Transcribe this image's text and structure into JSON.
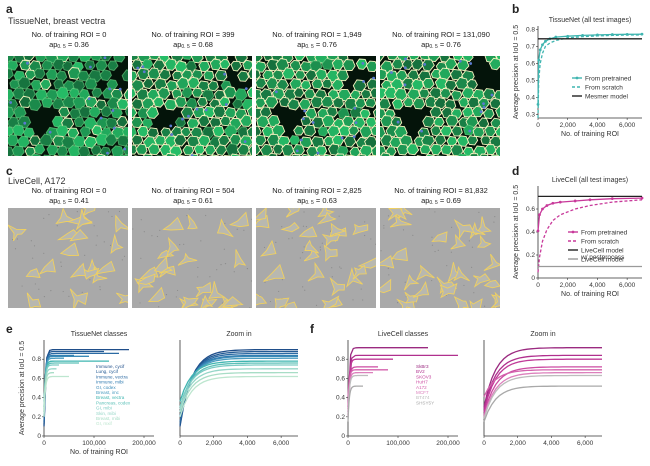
{
  "panel_labels": {
    "a": "a",
    "b": "b",
    "c": "c",
    "d": "d",
    "e": "e",
    "f": "f"
  },
  "tissuenet_title": "TissueNet, breast vectra",
  "livecell_title": "LiveCell, A172",
  "roi_prefix": "No. of training ROI = ",
  "ap_prefix": "ap",
  "ap_sub": "0. 5",
  "ap_eq": " = ",
  "tissuenet_images": [
    {
      "roi": "0",
      "ap": "0.36"
    },
    {
      "roi": "399",
      "ap": "0.68"
    },
    {
      "roi": "1,949",
      "ap": "0.76"
    },
    {
      "roi": "131,090",
      "ap": "0.76"
    }
  ],
  "livecell_images": [
    {
      "roi": "0",
      "ap": "0.41"
    },
    {
      "roi": "504",
      "ap": "0.61"
    },
    {
      "roi": "2,825",
      "ap": "0.63"
    },
    {
      "roi": "81,832",
      "ap": "0.69"
    }
  ],
  "colors": {
    "tissuenet_teal": "#3fb5b0",
    "tissuenet_dark": "#2a7f7c",
    "mesmer": "#222222",
    "livecell_magenta": "#c8399a",
    "livecell_gray": "#9a9a9a",
    "tissue_bg": "#04140a",
    "tissue_cell": "#1f8a6a",
    "tissue_edge": "#f4f4c0",
    "livecell_bg": "#a9a9a9",
    "livecell_outline": "#f0d060"
  },
  "chart_data": [
    {
      "id": "b",
      "type": "line",
      "title": "TissueNet (all test images)",
      "xlabel": "No. of training ROI",
      "ylabel": "Average precision at IoU = 0.5",
      "xlim": [
        0,
        7000
      ],
      "ylim": [
        0.28,
        0.82
      ],
      "xticks": [
        "0",
        "2,000",
        "4,000",
        "6,000"
      ],
      "xtick_values": [
        0,
        2000,
        4000,
        6000
      ],
      "yticks": [
        "0.3",
        "0.4",
        "0.5",
        "0.6",
        "0.7",
        "0.8"
      ],
      "ytick_values": [
        0.3,
        0.4,
        0.5,
        0.6,
        0.7,
        0.8
      ],
      "legend_position": "lower-right",
      "series": [
        {
          "name": "From pretrained",
          "style": "solid-marker",
          "color": "#3fb5b0",
          "x": [
            0,
            50,
            150,
            300,
            500,
            800,
            1200,
            2000,
            3000,
            4000,
            5000,
            6000,
            7000
          ],
          "y": [
            0.36,
            0.62,
            0.68,
            0.71,
            0.73,
            0.745,
            0.755,
            0.76,
            0.765,
            0.768,
            0.77,
            0.771,
            0.772
          ]
        },
        {
          "name": "From scratch",
          "style": "dashed",
          "color": "#3fb5b0",
          "x": [
            0,
            50,
            150,
            300,
            500,
            800,
            1200,
            2000,
            3000,
            4000,
            5000,
            6000,
            7000
          ],
          "y": [
            0.28,
            0.5,
            0.6,
            0.66,
            0.7,
            0.72,
            0.735,
            0.75,
            0.758,
            0.762,
            0.765,
            0.767,
            0.768
          ]
        },
        {
          "name": "Mesmer model",
          "style": "solid",
          "color": "#222222",
          "x": [
            0,
            7000
          ],
          "y": [
            0.745,
            0.745
          ]
        }
      ]
    },
    {
      "id": "d",
      "type": "line",
      "title": "LiveCell (all test images)",
      "xlabel": "No. of training ROI",
      "ylabel": "Average precision at IoU = 0.5",
      "xlim": [
        0,
        7000
      ],
      "ylim": [
        0.0,
        0.8
      ],
      "xticks": [
        "0",
        "2,000",
        "4,000",
        "6,000"
      ],
      "xtick_values": [
        0,
        2000,
        4000,
        6000
      ],
      "yticks": [
        "0",
        "0.2",
        "0.4",
        "0.6"
      ],
      "ytick_values": [
        0,
        0.2,
        0.4,
        0.6
      ],
      "legend_position": "lower-right",
      "series": [
        {
          "name": "From pretrained",
          "style": "solid-marker",
          "color": "#c8399a",
          "x": [
            0,
            100,
            300,
            600,
            1000,
            1500,
            2500,
            3500,
            5000,
            7000
          ],
          "y": [
            0.41,
            0.55,
            0.6,
            0.63,
            0.65,
            0.66,
            0.67,
            0.68,
            0.69,
            0.695
          ]
        },
        {
          "name": "From scratch",
          "style": "dashed",
          "color": "#c8399a",
          "x": [
            0,
            100,
            300,
            600,
            1000,
            1500,
            2500,
            3500,
            5000,
            7000
          ],
          "y": [
            0.05,
            0.18,
            0.32,
            0.42,
            0.5,
            0.55,
            0.6,
            0.63,
            0.66,
            0.68
          ]
        },
        {
          "name": "LiveCell model w/ postprocess",
          "style": "solid",
          "color": "#222222",
          "x": [
            0,
            7000
          ],
          "y": [
            0.71,
            0.71
          ]
        },
        {
          "name": "LiveCell model",
          "style": "solid",
          "color": "#9a9a9a",
          "x": [
            0,
            7000
          ],
          "y": [
            0.1,
            0.1
          ]
        }
      ]
    },
    {
      "id": "e",
      "type": "line",
      "title": "TissueNet classes",
      "xlabel": "No. of training ROI",
      "ylabel": "Average precision at IoU = 0.5",
      "xlim": [
        0,
        220000
      ],
      "ylim": [
        0,
        1.0
      ],
      "xticks": [
        "0",
        "100,000",
        "200,000"
      ],
      "xtick_values": [
        0,
        100000,
        200000
      ],
      "yticks": [
        "0",
        "0.2",
        "0.4",
        "0.6",
        "0.8"
      ],
      "ytick_values": [
        0,
        0.2,
        0.4,
        0.6,
        0.8
      ],
      "series": [
        {
          "name": "Immune, cycif",
          "color": "#1f4e8a",
          "xmax": 170000,
          "start": 0.1,
          "plateau": 0.9
        },
        {
          "name": "Lung, cycif",
          "color": "#235a94",
          "xmax": 120000,
          "start": 0.12,
          "plateau": 0.88
        },
        {
          "name": "Immune, vectra",
          "color": "#2b6aa3",
          "xmax": 150000,
          "start": 0.15,
          "plateau": 0.86
        },
        {
          "name": "Immune, mibi",
          "color": "#2f7ab0",
          "xmax": 60000,
          "start": 0.2,
          "plateau": 0.84
        },
        {
          "name": "GI, codex",
          "color": "#3a8ab8",
          "xmax": 90000,
          "start": 0.2,
          "plateau": 0.83
        },
        {
          "name": "Breast, imc",
          "color": "#4a9cc0",
          "xmax": 40000,
          "start": 0.25,
          "plateau": 0.81
        },
        {
          "name": "Breast, vectra",
          "color": "#3fb5b0",
          "xmax": 130000,
          "start": 0.36,
          "plateau": 0.78
        },
        {
          "name": "Pancreas, codex",
          "color": "#5cc0b8",
          "xmax": 70000,
          "start": 0.3,
          "plateau": 0.76
        },
        {
          "name": "GI, mibi",
          "color": "#7cccc4",
          "xmax": 30000,
          "start": 0.3,
          "plateau": 0.74
        },
        {
          "name": "Skin, mibi",
          "color": "#96d6c8",
          "xmax": 25000,
          "start": 0.28,
          "plateau": 0.7
        },
        {
          "name": "Breast, mibi",
          "color": "#a8ddc6",
          "xmax": 20000,
          "start": 0.25,
          "plateau": 0.66
        },
        {
          "name": "GI, mxif",
          "color": "#bde6cf",
          "xmax": 50000,
          "start": 0.2,
          "plateau": 0.62
        }
      ]
    },
    {
      "id": "e-zoom",
      "type": "line",
      "title": "Zoom in",
      "xlim": [
        0,
        7000
      ],
      "ylim": [
        0,
        1.0
      ],
      "xticks": [
        "0",
        "2,000",
        "4,000",
        "6,000"
      ],
      "xtick_values": [
        0,
        2000,
        4000,
        6000
      ],
      "series_ref": "e"
    },
    {
      "id": "f",
      "type": "line",
      "title": "LiveCell classes",
      "xlim": [
        0,
        220000
      ],
      "ylim": [
        0,
        1.0
      ],
      "xticks": [
        "0",
        "100,000",
        "200,000"
      ],
      "xtick_values": [
        0,
        100000,
        200000
      ],
      "yticks": [
        "0",
        "0.2",
        "0.4",
        "0.6",
        "0.8"
      ],
      "ytick_values": [
        0,
        0.2,
        0.4,
        0.6,
        0.8
      ],
      "series": [
        {
          "name": "SkBr3",
          "color": "#9b2a80",
          "xmax": 160000,
          "start": 0.3,
          "plateau": 0.92
        },
        {
          "name": "BV2",
          "color": "#b0308e",
          "xmax": 220000,
          "start": 0.28,
          "plateau": 0.84
        },
        {
          "name": "SKOV3",
          "color": "#c03a98",
          "xmax": 90000,
          "start": 0.25,
          "plateau": 0.8
        },
        {
          "name": "HuH7",
          "color": "#cc4ba2",
          "xmax": 60000,
          "start": 0.22,
          "plateau": 0.72
        },
        {
          "name": "A172",
          "color": "#d462ad",
          "xmax": 80000,
          "start": 0.41,
          "plateau": 0.69
        },
        {
          "name": "MCF7",
          "color": "#dc80bc",
          "xmax": 50000,
          "start": 0.2,
          "plateau": 0.66
        },
        {
          "name": "BT474",
          "color": "#bdbdbd",
          "xmax": 40000,
          "start": 0.18,
          "plateau": 0.63
        },
        {
          "name": "SHSY5Y",
          "color": "#a9a9a9",
          "xmax": 30000,
          "start": 0.15,
          "plateau": 0.52
        }
      ]
    },
    {
      "id": "f-zoom",
      "type": "line",
      "title": "Zoom in",
      "xlim": [
        0,
        7000
      ],
      "ylim": [
        0,
        1.0
      ],
      "xticks": [
        "0",
        "2,000",
        "4,000",
        "6,000"
      ],
      "xtick_values": [
        0,
        2000,
        4000,
        6000
      ],
      "series_ref": "f"
    }
  ]
}
